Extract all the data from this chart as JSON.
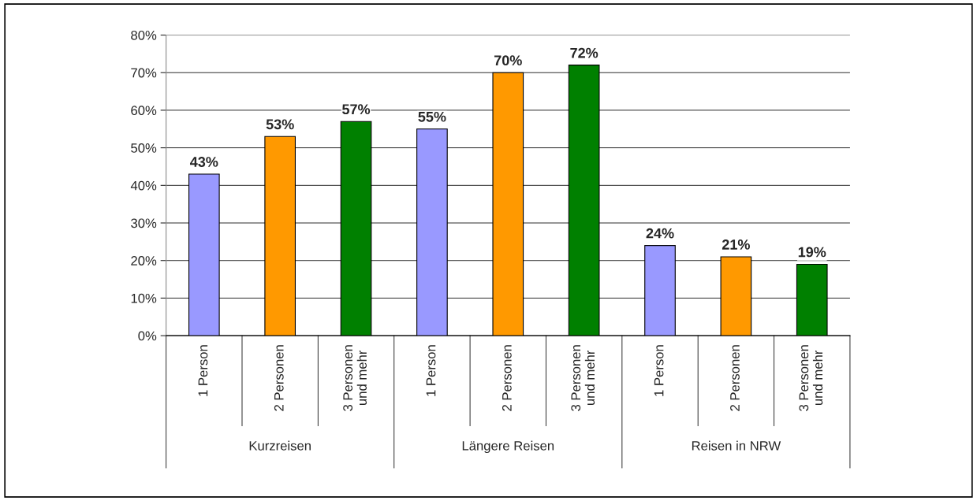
{
  "chart_data": {
    "type": "bar",
    "categories": [
      "1 Person",
      "2 Personen",
      "3 Personen\nund mehr",
      "1 Person",
      "2 Personen",
      "3 Personen\nund mehr",
      "1 Person",
      "2 Personen",
      "3 Personen\nund mehr"
    ],
    "values": [
      43,
      53,
      57,
      55,
      70,
      72,
      24,
      21,
      19
    ],
    "colors": [
      "#9999ff",
      "#ff9900",
      "#008000",
      "#9999ff",
      "#ff9900",
      "#008000",
      "#9999ff",
      "#ff9900",
      "#008000"
    ],
    "value_labels": [
      "43%",
      "53%",
      "57%",
      "55%",
      "70%",
      "72%",
      "24%",
      "21%",
      "19%"
    ],
    "ylim": [
      0,
      80
    ],
    "yticks": [
      {
        "value": 0,
        "label": "0%"
      },
      {
        "value": 10,
        "label": "10%"
      },
      {
        "value": 20,
        "label": "20%"
      },
      {
        "value": 30,
        "label": "30%"
      },
      {
        "value": 40,
        "label": "40%"
      },
      {
        "value": 50,
        "label": "50%"
      },
      {
        "value": 60,
        "label": "60%"
      },
      {
        "value": 70,
        "label": "70%"
      },
      {
        "value": 80,
        "label": "80%"
      }
    ],
    "grid": "y",
    "annotations": [
      "Kurzreisen",
      "Längere Reisen",
      "Reisen in NRW"
    ]
  }
}
